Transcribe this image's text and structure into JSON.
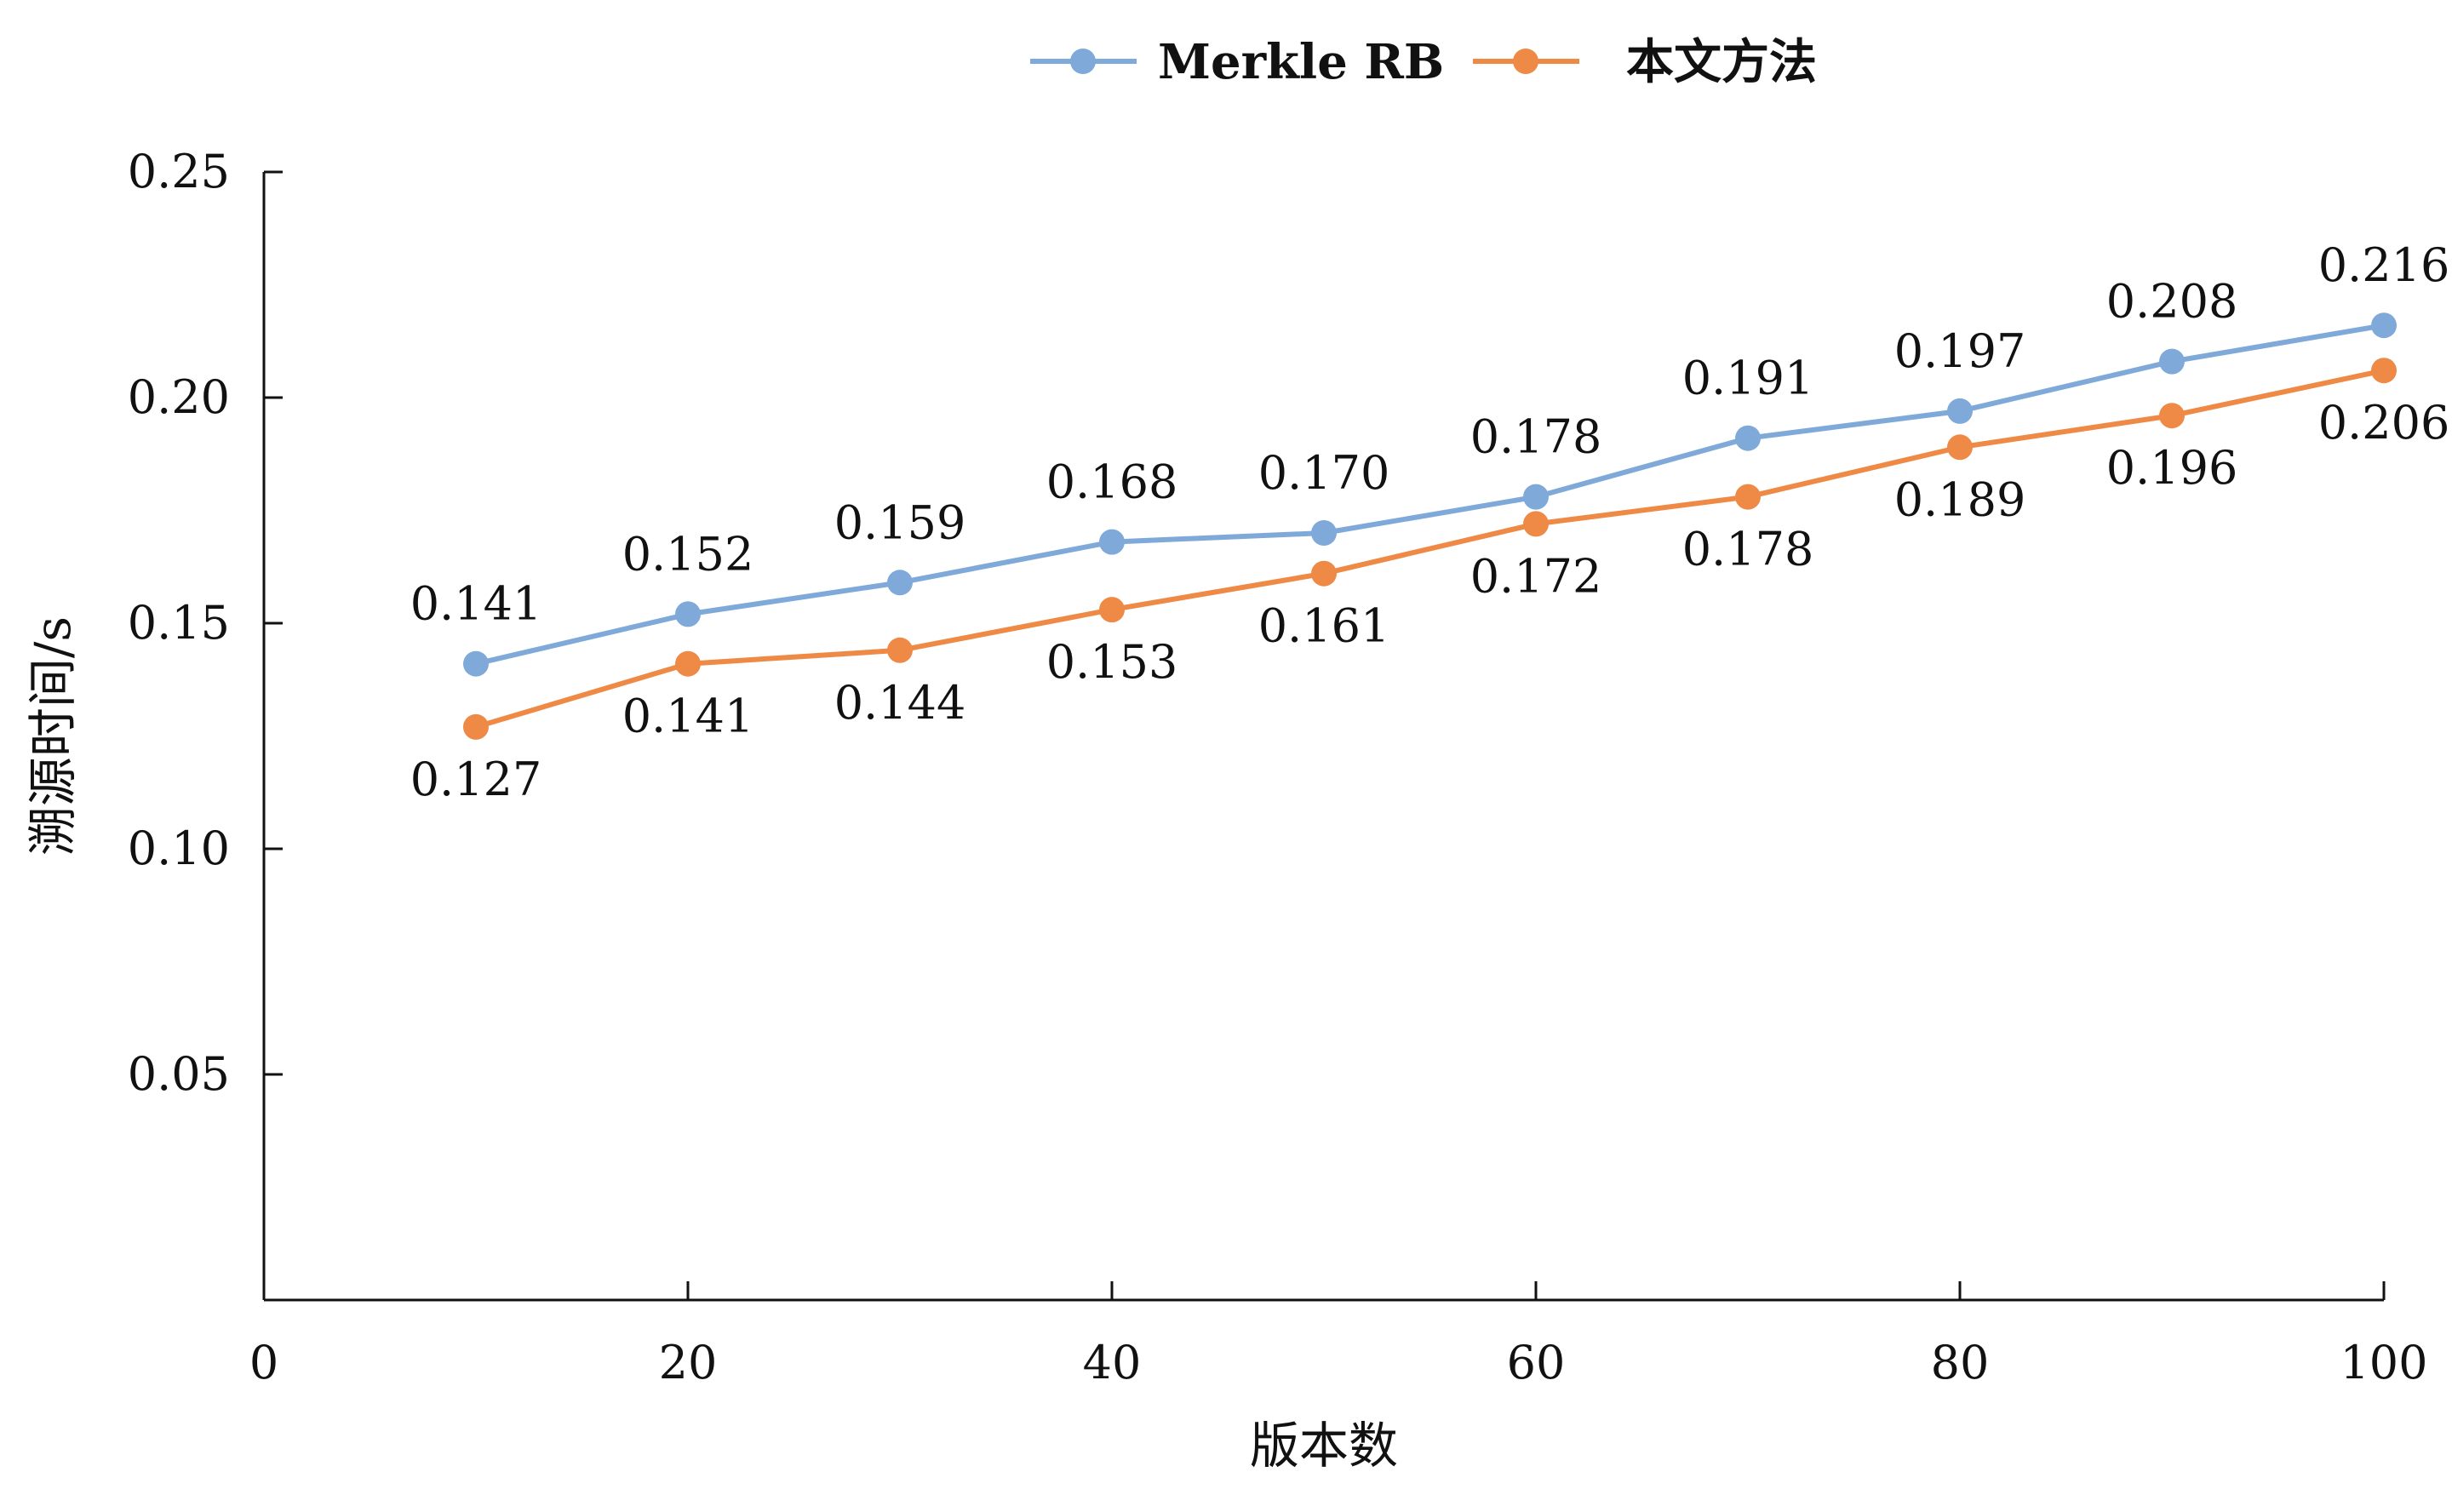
{
  "chart_data": {
    "type": "line",
    "x": [
      10,
      20,
      30,
      40,
      50,
      60,
      70,
      80,
      90,
      100
    ],
    "series": [
      {
        "name": "Merkle RB",
        "color": "#7FA9D8",
        "values": [
          0.141,
          0.152,
          0.159,
          0.168,
          0.17,
          0.178,
          0.191,
          0.197,
          0.208,
          0.216
        ],
        "labels": [
          "0.141",
          "0.152",
          "0.159",
          "0.168",
          "0.170",
          "0.178",
          "0.191",
          "0.197",
          "0.208",
          "0.216"
        ],
        "label_position": "above"
      },
      {
        "name": "本文方法",
        "color": "#EE8A45",
        "values": [
          0.127,
          0.141,
          0.144,
          0.153,
          0.161,
          0.172,
          0.178,
          0.189,
          0.196,
          0.206
        ],
        "labels": [
          "0.127",
          "0.141",
          "0.144",
          "0.153",
          "0.161",
          "0.172",
          "0.178",
          "0.189",
          "0.196",
          "0.206"
        ],
        "label_position": "below"
      }
    ],
    "xlabel": "版本数",
    "ylabel": "溯源时间/s",
    "xlim": [
      0,
      100
    ],
    "ylim": [
      0,
      0.25
    ],
    "x_ticks": [
      0,
      20,
      40,
      60,
      80,
      100
    ],
    "x_tick_labels": [
      "0",
      "20",
      "40",
      "60",
      "80",
      "100"
    ],
    "y_ticks": [
      0.05,
      0.1,
      0.15,
      0.2,
      0.25
    ],
    "y_tick_labels": [
      "0.05",
      "0.10",
      "0.15",
      "0.20",
      "0.25"
    ],
    "grid": false,
    "legend_position": "top-center"
  }
}
